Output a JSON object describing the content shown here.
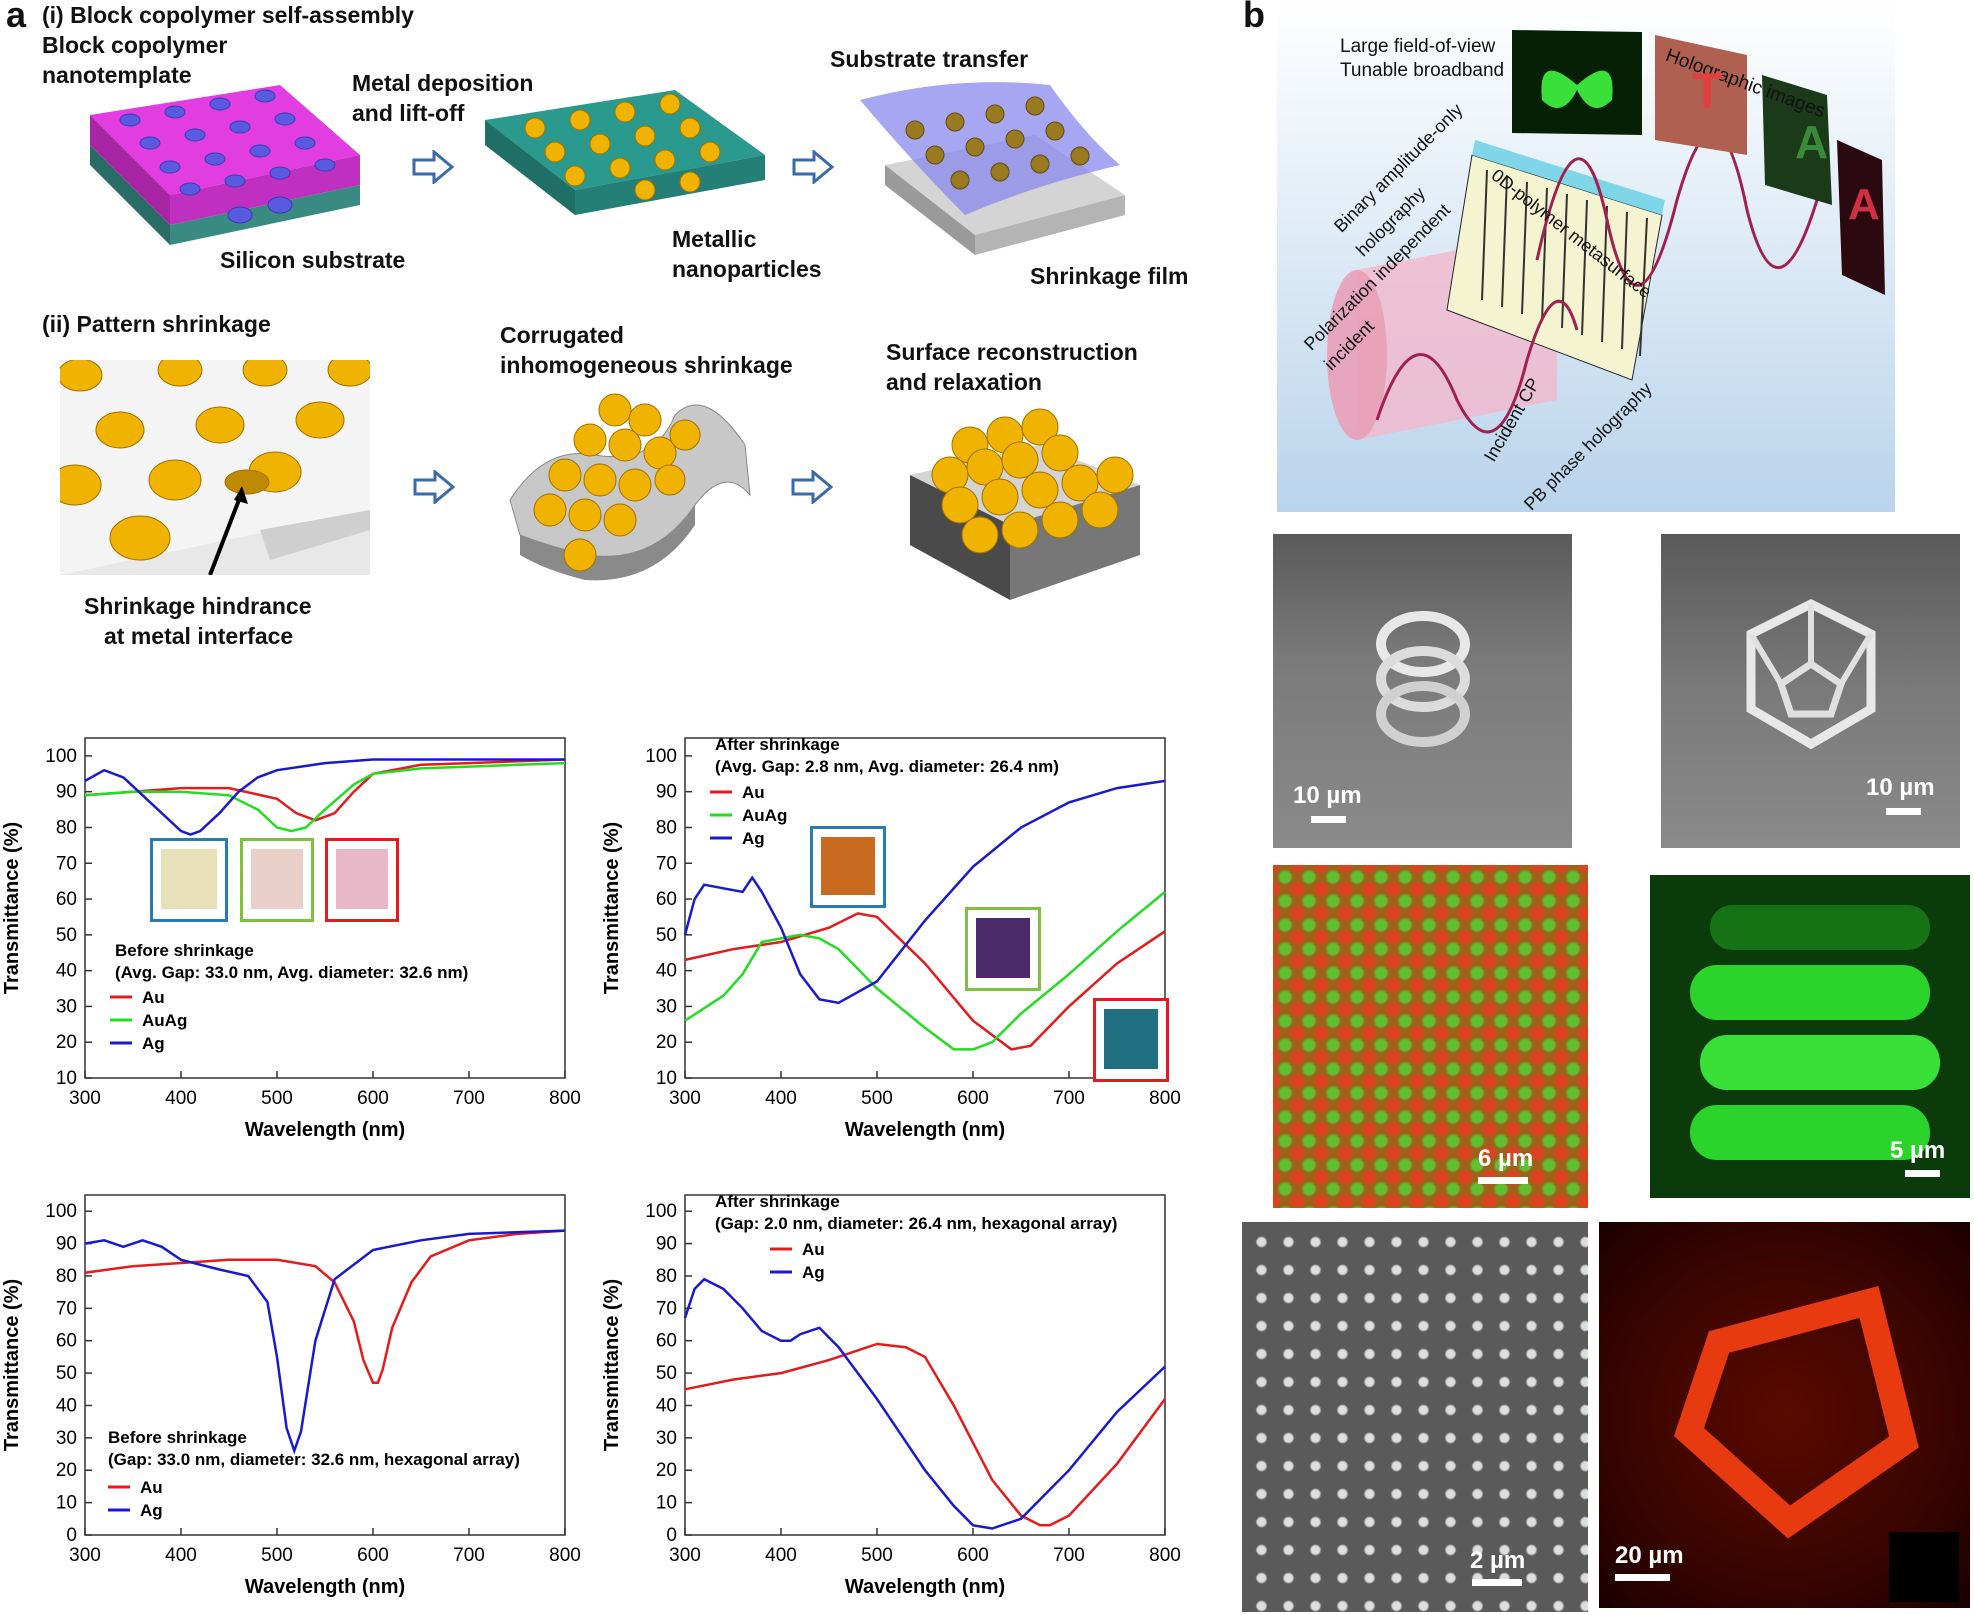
{
  "panel_a": {
    "letter": "a",
    "step_i_title": "(i) Block copolymer self-assembly",
    "nanotemplate_line1": "Block copolymer",
    "nanotemplate_line2": "nanotemplate",
    "silicon_substrate": "Silicon substrate",
    "metal_dep_line1": "Metal deposition",
    "metal_dep_line2": "and lift-off",
    "metallic_line1": "Metallic",
    "metallic_line2": "nanoparticles",
    "substrate_transfer": "Substrate transfer",
    "shrinkage_film": "Shrinkage film",
    "step_ii_title": "(ii) Pattern shrinkage",
    "hindrance_line1": "Shrinkage hindrance",
    "hindrance_line2": "at metal interface",
    "corrugated_line1": "Corrugated",
    "corrugated_line2": "inhomogeneous shrinkage",
    "surface_line1": "Surface reconstruction",
    "surface_line2": "and relaxation"
  },
  "panel_b": {
    "letter": "b",
    "large_fov": "Large field-of-view",
    "tunable": "Tunable broadband",
    "holographic_images": "Holographic images",
    "binary_line1": "Binary amplitude-only",
    "binary_line2": "holography",
    "polarization_line1": "Polarization independent",
    "polarization_line2": "incident",
    "metasurface": "0D-polymer metasurface",
    "incident_cp": "Incident CP",
    "pb_phase": "PB phase holography",
    "letter_t": "T",
    "letter_a1": "A",
    "letter_a2": "A",
    "scale_helix": "10 µm",
    "scale_dodeca": "10 µm",
    "scale_array_color": "6 µm",
    "scale_green": "5 µm",
    "scale_dots": "2 µm",
    "scale_red": "20 µm"
  },
  "colors": {
    "au": "#e41a1c",
    "auag": "#22dd22",
    "ag": "#1a1acc",
    "gold": "#f0b400"
  },
  "chart_data": [
    {
      "type": "line",
      "id": "top-left",
      "xlabel": "Wavelength (nm)",
      "ylabel": "Transmittance (%)",
      "xlim": [
        300,
        800
      ],
      "ylim": [
        10,
        105
      ],
      "xticks": [
        300,
        400,
        500,
        600,
        700,
        800
      ],
      "yticks": [
        10,
        20,
        30,
        40,
        50,
        60,
        70,
        80,
        90,
        100
      ],
      "annotation_line1": "Before shrinkage",
      "annotation_line2": "(Avg. Gap: 33.0 nm, Avg. diameter: 32.6 nm)",
      "series": [
        {
          "name": "Au",
          "color": "#e41a1c",
          "x": [
            300,
            350,
            400,
            450,
            500,
            520,
            540,
            560,
            580,
            600,
            650,
            700,
            800
          ],
          "y": [
            89,
            90,
            91,
            91,
            88,
            84,
            82,
            84,
            90,
            95,
            97.5,
            98,
            99
          ]
        },
        {
          "name": "AuAg",
          "color": "#22dd22",
          "x": [
            300,
            350,
            400,
            450,
            480,
            500,
            515,
            530,
            550,
            580,
            600,
            650,
            700,
            800
          ],
          "y": [
            89,
            90,
            90,
            89,
            85,
            80,
            79,
            80,
            85,
            92,
            95,
            96.5,
            97,
            98
          ]
        },
        {
          "name": "Ag",
          "color": "#1a1acc",
          "x": [
            300,
            320,
            340,
            360,
            380,
            400,
            410,
            420,
            440,
            460,
            480,
            500,
            550,
            600,
            700,
            800
          ],
          "y": [
            93,
            96,
            94,
            89,
            84,
            79,
            78,
            79,
            84,
            90,
            94,
            96,
            98,
            99,
            99,
            99
          ]
        }
      ]
    },
    {
      "type": "line",
      "id": "top-right",
      "xlabel": "Wavelength (nm)",
      "ylabel": "Transmittance (%)",
      "xlim": [
        300,
        800
      ],
      "ylim": [
        10,
        105
      ],
      "xticks": [
        300,
        400,
        500,
        600,
        700,
        800
      ],
      "yticks": [
        10,
        20,
        30,
        40,
        50,
        60,
        70,
        80,
        90,
        100
      ],
      "annotation_line1": "After shrinkage",
      "annotation_line2": "(Avg. Gap: 2.8 nm, Avg. diameter: 26.4 nm)",
      "series": [
        {
          "name": "Au",
          "color": "#e41a1c",
          "x": [
            300,
            350,
            400,
            450,
            480,
            500,
            550,
            600,
            640,
            660,
            700,
            750,
            800
          ],
          "y": [
            43,
            46,
            48,
            52,
            56,
            55,
            42,
            26,
            18,
            19,
            30,
            42,
            51
          ]
        },
        {
          "name": "AuAg",
          "color": "#22dd22",
          "x": [
            300,
            340,
            360,
            380,
            400,
            420,
            440,
            460,
            500,
            550,
            580,
            600,
            620,
            650,
            700,
            750,
            800
          ],
          "y": [
            26,
            33,
            39,
            48,
            49,
            50,
            49,
            46,
            35,
            24,
            18,
            18,
            20,
            28,
            39,
            51,
            62
          ]
        },
        {
          "name": "Ag",
          "color": "#1a1acc",
          "x": [
            300,
            310,
            320,
            340,
            360,
            370,
            380,
            400,
            420,
            440,
            460,
            500,
            550,
            600,
            650,
            700,
            750,
            800
          ],
          "y": [
            50,
            60,
            64,
            63,
            62,
            66,
            62,
            52,
            39,
            32,
            31,
            37,
            54,
            69,
            80,
            87,
            91,
            93
          ]
        }
      ]
    },
    {
      "type": "line",
      "id": "bottom-left",
      "xlabel": "Wavelength (nm)",
      "ylabel": "Transmittance (%)",
      "xlim": [
        300,
        800
      ],
      "ylim": [
        0,
        105
      ],
      "xticks": [
        300,
        400,
        500,
        600,
        700,
        800
      ],
      "yticks": [
        0,
        10,
        20,
        30,
        40,
        50,
        60,
        70,
        80,
        90,
        100
      ],
      "annotation_line1": "Before shrinkage",
      "annotation_line2": "(Gap: 33.0 nm, diameter: 32.6 nm, hexagonal array)",
      "series": [
        {
          "name": "Au",
          "color": "#e41a1c",
          "x": [
            300,
            350,
            400,
            450,
            500,
            540,
            560,
            580,
            590,
            600,
            605,
            610,
            620,
            640,
            660,
            700,
            750,
            800
          ],
          "y": [
            81,
            83,
            84,
            85,
            85,
            83,
            78,
            66,
            54,
            47,
            47,
            51,
            64,
            78,
            86,
            91,
            93,
            94
          ]
        },
        {
          "name": "Ag",
          "color": "#1a1acc",
          "x": [
            300,
            320,
            340,
            360,
            380,
            400,
            440,
            470,
            490,
            500,
            510,
            518,
            525,
            540,
            560,
            600,
            650,
            700,
            800
          ],
          "y": [
            90,
            91,
            89,
            91,
            89,
            85,
            82,
            80,
            72,
            55,
            33,
            26,
            32,
            60,
            79,
            88,
            91,
            93,
            94
          ]
        }
      ]
    },
    {
      "type": "line",
      "id": "bottom-right",
      "xlabel": "Wavelength (nm)",
      "ylabel": "Transmittance (%)",
      "xlim": [
        300,
        800
      ],
      "ylim": [
        0,
        105
      ],
      "xticks": [
        300,
        400,
        500,
        600,
        700,
        800
      ],
      "yticks": [
        0,
        10,
        20,
        30,
        40,
        50,
        60,
        70,
        80,
        90,
        100
      ],
      "annotation_line1": "After shrinkage",
      "annotation_line2": "(Gap: 2.0 nm, diameter: 26.4 nm, hexagonal array)",
      "series": [
        {
          "name": "Au",
          "color": "#e41a1c",
          "x": [
            300,
            350,
            400,
            450,
            500,
            530,
            550,
            580,
            620,
            650,
            670,
            680,
            700,
            750,
            800
          ],
          "y": [
            45,
            48,
            50,
            54,
            59,
            58,
            55,
            40,
            17,
            6,
            3,
            3,
            6,
            22,
            42
          ]
        },
        {
          "name": "Ag",
          "color": "#1a1acc",
          "x": [
            300,
            310,
            320,
            340,
            360,
            380,
            400,
            410,
            420,
            440,
            460,
            500,
            550,
            580,
            600,
            620,
            650,
            700,
            750,
            800
          ],
          "y": [
            67,
            76,
            79,
            76,
            70,
            63,
            60,
            60,
            62,
            64,
            58,
            42,
            20,
            9,
            3,
            2,
            5,
            20,
            38,
            52
          ]
        }
      ]
    }
  ]
}
